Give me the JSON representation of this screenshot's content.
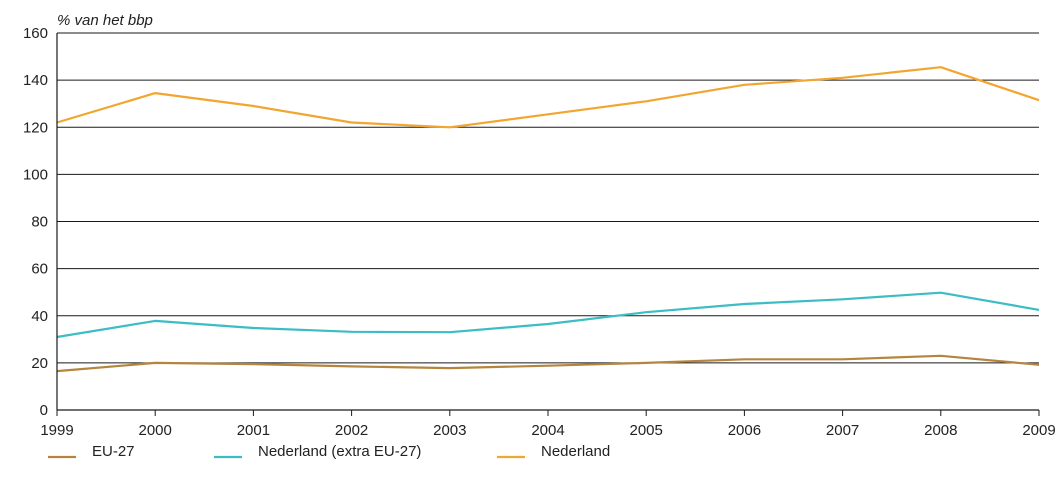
{
  "chart_data": {
    "type": "line",
    "ylabel": "% van het bbp",
    "x": [
      "1999",
      "2000",
      "2001",
      "2002",
      "2003",
      "2004",
      "2005",
      "2006",
      "2007",
      "2008",
      "2009"
    ],
    "ylim": [
      0,
      160
    ],
    "yticks": [
      "0",
      "20",
      "40",
      "60",
      "80",
      "100",
      "120",
      "140",
      "160"
    ],
    "grid": true,
    "legend_position": "bottom",
    "series": [
      {
        "name": "EU-27",
        "color": "#B5853E",
        "values": [
          16.5,
          20,
          19.5,
          18.5,
          17.8,
          18.8,
          20,
          21.5,
          21.5,
          23,
          19.2
        ]
      },
      {
        "name": "Nederland (extra EU-27)",
        "color": "#3BBDC4",
        "values": [
          31,
          37.8,
          34.8,
          33.2,
          33,
          36.5,
          41.5,
          45,
          47,
          49.8,
          42.5
        ]
      },
      {
        "name": "Nederland",
        "color": "#F2A630",
        "values": [
          122,
          134.5,
          129,
          122,
          120,
          125.5,
          131,
          138,
          141,
          145.5,
          131.5
        ]
      }
    ]
  }
}
